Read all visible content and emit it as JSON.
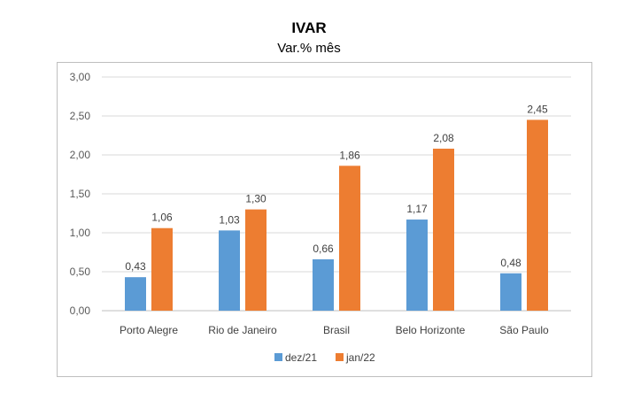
{
  "chart_data": {
    "type": "bar",
    "title": "IVAR",
    "subtitle": "Var.% mês",
    "categories": [
      "Porto Alegre",
      "Rio de Janeiro",
      "Brasil",
      "Belo Horizonte",
      "São Paulo"
    ],
    "series": [
      {
        "name": "dez/21",
        "color": "#5b9bd5",
        "values": [
          0.43,
          1.03,
          0.66,
          1.17,
          0.48
        ],
        "labels": [
          "0,43",
          "1,03",
          "0,66",
          "1,17",
          "0,48"
        ]
      },
      {
        "name": "jan/22",
        "color": "#ed7d31",
        "values": [
          1.06,
          1.3,
          1.86,
          2.08,
          2.45
        ],
        "labels": [
          "1,06",
          "1,30",
          "1,86",
          "2,08",
          "2,45"
        ]
      }
    ],
    "ylim": [
      0,
      3
    ],
    "yticks": [
      0,
      0.5,
      1,
      1.5,
      2,
      2.5,
      3
    ],
    "ytick_labels": [
      "0,00",
      "0,50",
      "1,00",
      "1,50",
      "2,00",
      "2,50",
      "3,00"
    ],
    "grid": true,
    "legend_position": "bottom"
  }
}
